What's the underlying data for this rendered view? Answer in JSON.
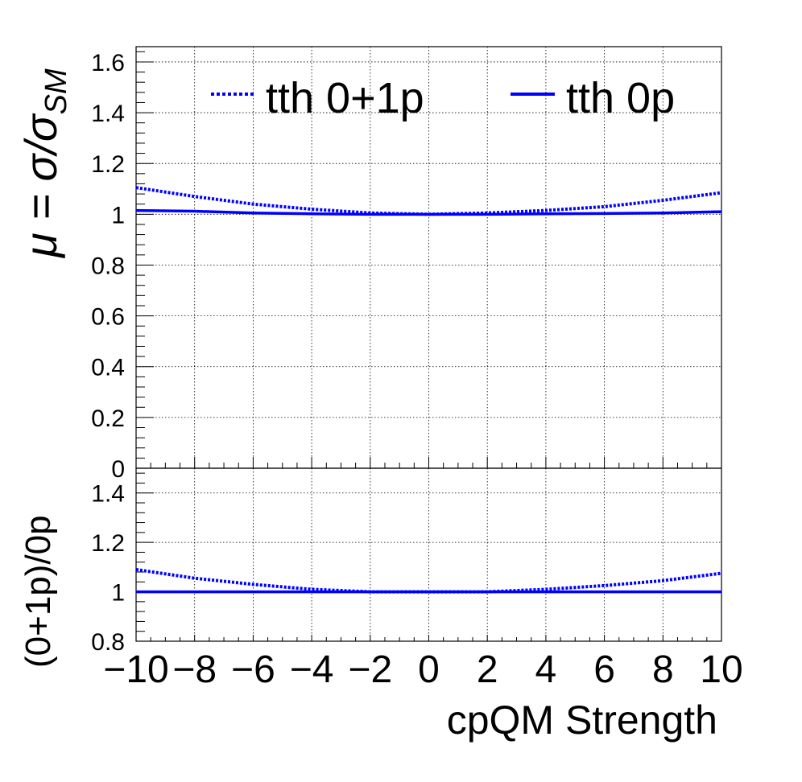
{
  "chart_data": [
    {
      "type": "line",
      "panel": "main",
      "ylabel_main": "μ = σ/σ",
      "ylabel_sub": "SM",
      "xlim": [
        -10,
        10
      ],
      "ylim": [
        0,
        1.66
      ],
      "yticks": [
        0,
        0.2,
        0.4,
        0.6,
        0.8,
        1,
        1.2,
        1.4,
        1.6
      ],
      "ytick_labels": [
        "0",
        "0.2",
        "0.4",
        "0.6",
        "0.8",
        "1",
        "1.2",
        "1.4",
        "1.6"
      ],
      "grid": true,
      "legend_placement": "top",
      "x": [
        -10,
        -8,
        -6,
        -4,
        -2,
        0,
        2,
        4,
        6,
        8,
        10
      ],
      "series": [
        {
          "name": "tth 0+1p",
          "style": "dotted",
          "color": "#0000ff",
          "values": [
            1.105,
            1.07,
            1.04,
            1.02,
            1.005,
            1.0,
            1.005,
            1.015,
            1.03,
            1.055,
            1.085
          ]
        },
        {
          "name": "tth 0p",
          "style": "solid",
          "color": "#0000ff",
          "values": [
            1.015,
            1.012,
            1.005,
            1.002,
            1.0,
            1.0,
            1.0,
            1.002,
            1.003,
            1.005,
            1.01
          ]
        }
      ]
    },
    {
      "type": "line",
      "panel": "ratio",
      "ylabel": "(0+1p)/0p",
      "xlabel": "cpQM Strength",
      "xlim": [
        -10,
        10
      ],
      "ylim": [
        0.8,
        1.5
      ],
      "yticks": [
        0.8,
        1,
        1.2,
        1.4
      ],
      "ytick_labels": [
        "0.8",
        "1",
        "1.2",
        "1.4"
      ],
      "xticks": [
        -10,
        -8,
        -6,
        -4,
        -2,
        0,
        2,
        4,
        6,
        8,
        10
      ],
      "xtick_labels": [
        "−10",
        "−8",
        "−6",
        "−4",
        "−2",
        "0",
        "2",
        "4",
        "6",
        "8",
        "10"
      ],
      "grid": true,
      "x": [
        -10,
        -8,
        -6,
        -4,
        -2,
        0,
        2,
        4,
        6,
        8,
        10
      ],
      "series": [
        {
          "style": "dotted",
          "color": "#0000ff",
          "values": [
            1.09,
            1.055,
            1.03,
            1.01,
            1.0,
            1.0,
            1.0,
            1.01,
            1.025,
            1.045,
            1.075
          ]
        },
        {
          "style": "solid",
          "color": "#0000ff",
          "values": [
            1.0,
            1.0,
            1.0,
            1.0,
            1.0,
            1.0,
            1.0,
            1.0,
            1.0,
            1.0,
            1.0
          ]
        }
      ]
    }
  ]
}
